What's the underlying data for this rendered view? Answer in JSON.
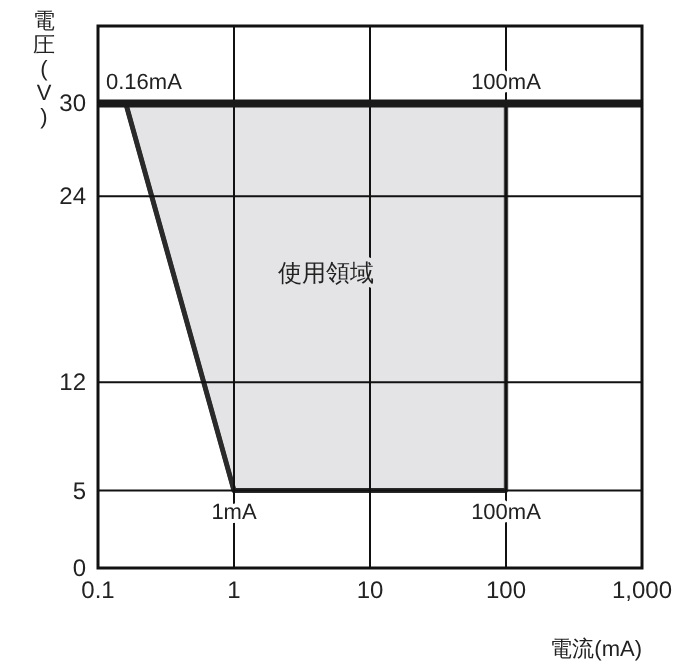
{
  "chart_data": {
    "type": "line",
    "xlabel": "電流(mA)",
    "ylabel": "電圧(V)",
    "log": "x",
    "xlim": [
      0.1,
      1000
    ],
    "xticks": [
      0.1,
      1,
      10,
      100,
      {
        "value": 1000,
        "label": "1,000"
      }
    ],
    "ylim": [
      0,
      35
    ],
    "yticks": [
      0,
      5,
      12,
      24,
      30
    ],
    "grid": true,
    "series": [
      {
        "color": "#2a2a2a",
        "x": [
          0.16,
          1,
          100
        ],
        "values": [
          30,
          5,
          5
        ],
        "lower": [
          30,
          5,
          5
        ],
        "upper": [
          30,
          30,
          30
        ]
      }
    ],
    "ref_lines": [
      {
        "axis": "y",
        "value": 30,
        "color": "#1a1a1a"
      }
    ],
    "annotations": [
      {
        "text": "0.16mA",
        "x": 0.16,
        "y": 30
      },
      {
        "text": "100mA",
        "x": 100,
        "y": 30
      },
      {
        "text": "1mA",
        "x": 1,
        "y": 5
      },
      {
        "text": "100mA",
        "x": 100,
        "y": 5
      },
      "使用領域"
    ]
  }
}
